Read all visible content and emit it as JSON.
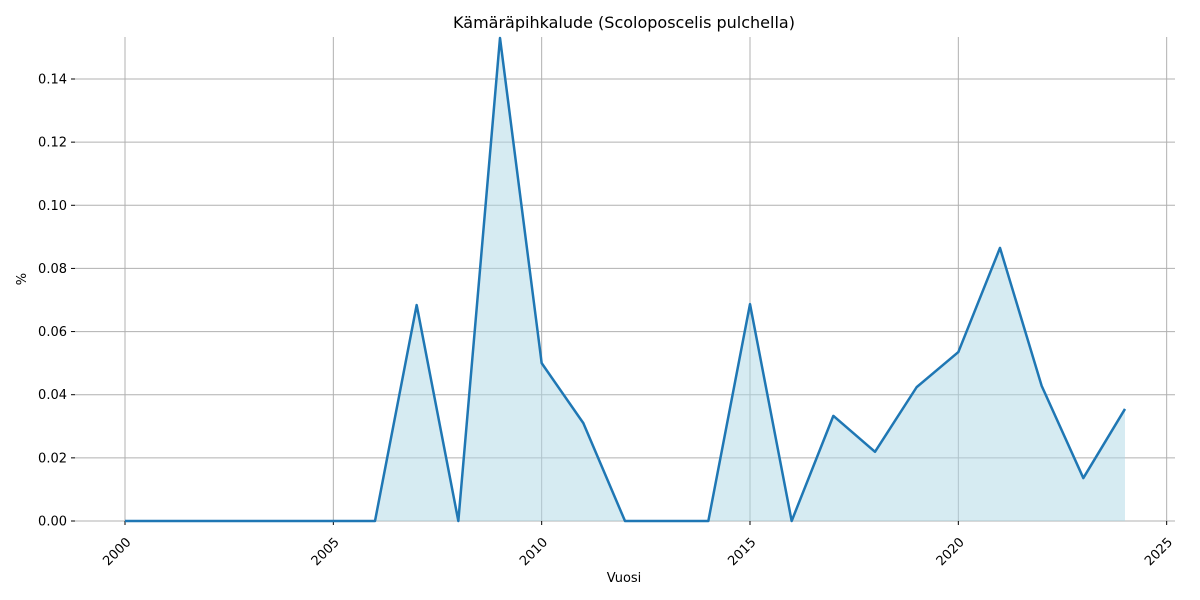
{
  "chart_data": {
    "type": "area",
    "title": "Kämäräpihkalude (Scoloposcelis pulchella)",
    "x_label": "Vuosi",
    "y_label": "%",
    "x": [
      2000,
      2001,
      2002,
      2003,
      2004,
      2005,
      2006,
      2007,
      2008,
      2009,
      2010,
      2011,
      2012,
      2013,
      2014,
      2015,
      2016,
      2017,
      2018,
      2019,
      2020,
      2021,
      2022,
      2023,
      2024
    ],
    "series": [
      {
        "color": "#1f77b4",
        "fill": "#add8e6",
        "values": [
          0,
          0,
          0,
          0,
          0,
          0,
          0,
          0.0684,
          0,
          0.153,
          0.05,
          0.031,
          0,
          0,
          0,
          0.0687,
          0,
          0.0333,
          0.0219,
          0.0424,
          0.0535,
          0.0865,
          0.0428,
          0.0136,
          0.0355
        ]
      }
    ],
    "xlim": [
      1998.8,
      2025.2
    ],
    "ylim": [
      0,
      0.1533
    ],
    "xticks": [
      2000,
      2005,
      2010,
      2015,
      2020,
      2025
    ],
    "yticks": [
      {
        "value": 0,
        "label": "0.00"
      },
      {
        "value": 0.02,
        "label": "0.02"
      },
      {
        "value": 0.04,
        "label": "0.04"
      },
      {
        "value": 0.06,
        "label": "0.06"
      },
      {
        "value": 0.08,
        "label": "0.08"
      },
      {
        "value": 0.1,
        "label": "0.10"
      },
      {
        "value": 0.12,
        "label": "0.12"
      },
      {
        "value": 0.14,
        "label": "0.14"
      }
    ],
    "grid": true
  }
}
